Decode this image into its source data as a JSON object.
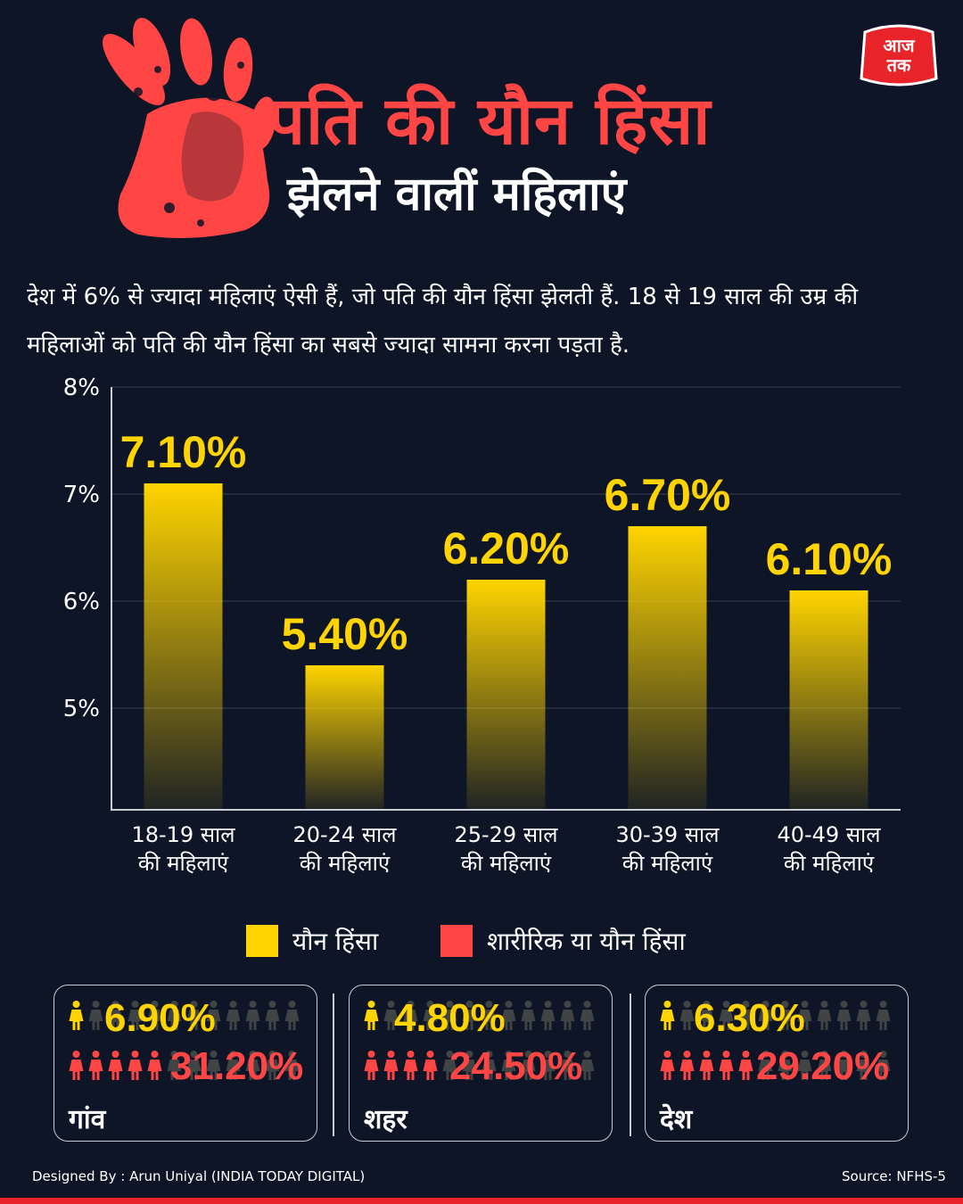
{
  "header": {
    "title_line1": "पति की यौन हिंसा",
    "title_line2": "झेलने वालीं महिलाएं",
    "logo_text_top": "आज",
    "logo_text_bottom": "तक"
  },
  "description": "देश में 6% से ज्यादा महिलाएं ऐसी हैं, जो पति की यौन हिंसा झेलती हैं. 18 से 19 साल की उम्र की महिलाओं को पति की यौन हिंसा का सबसे ज्यादा सामना करना पड़ता है.",
  "chart_data": {
    "type": "bar",
    "categories": [
      [
        "18-19 साल",
        "की महिलाएं"
      ],
      [
        "20-24 साल",
        "की महिलाएं"
      ],
      [
        "25-29 साल",
        "की महिलाएं"
      ],
      [
        "30-39 साल",
        "की महिलाएं"
      ],
      [
        "40-49 साल",
        "की महिलाएं"
      ]
    ],
    "values": [
      7.1,
      5.4,
      6.2,
      6.7,
      6.1
    ],
    "value_labels": [
      "7.10%",
      "5.40%",
      "6.20%",
      "6.70%",
      "6.10%"
    ],
    "y_ticks": [
      "5%",
      "6%",
      "7%",
      "8%"
    ],
    "ylim": [
      4.05,
      8
    ],
    "grid": true,
    "bar_color": "#ffd400"
  },
  "legend": {
    "items": [
      {
        "label": "यौन हिंसा",
        "color": "#ffd400"
      },
      {
        "label": "शारीरिक या यौन हिंसा",
        "color": "#ff4645"
      }
    ]
  },
  "stats": [
    {
      "label": "गांव",
      "sexual": "6.90%",
      "physical_or_sexual": "31.20%",
      "sexual_level": 0.069,
      "physical_level": 0.312
    },
    {
      "label": "शहर",
      "sexual": "4.80%",
      "physical_or_sexual": "24.50%",
      "sexual_level": 0.048,
      "physical_level": 0.245
    },
    {
      "label": "देश",
      "sexual": "6.30%",
      "physical_or_sexual": "29.20%",
      "sexual_level": 0.063,
      "physical_level": 0.292
    }
  ],
  "footer": {
    "credit": "Designed By : Arun Uniyal (INDIA TODAY DIGITAL)",
    "source": "Source:  NFHS-5"
  },
  "colors": {
    "background": "#0d1526",
    "accent_red": "#ff4645",
    "accent_yellow": "#ffd400",
    "dim_figure": "#6b6b5e"
  }
}
